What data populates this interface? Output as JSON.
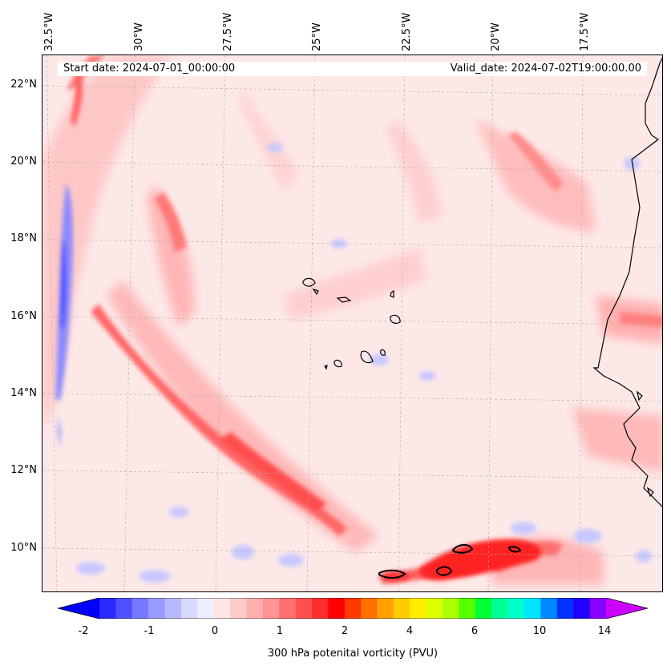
{
  "map": {
    "title_start": "Start date: 2024-07-01_00:00:00",
    "title_valid": "Valid_date: 2024-07-02T19:00:00.00",
    "lon_labels": [
      "32.5°W",
      "30°W",
      "27.5°W",
      "25°W",
      "22.5°W",
      "20°W",
      "17.5°W"
    ],
    "lat_labels": [
      "22°N",
      "20°N",
      "18°N",
      "16°N",
      "14°N",
      "12°N",
      "10°N"
    ],
    "variable": "300 hPa potenital vorticity (PVU)"
  },
  "colorbar": {
    "tick_labels": [
      "-2",
      "-1",
      "0",
      "1",
      "2",
      "4",
      "6",
      "10",
      "14"
    ],
    "colors": [
      "#0000ff",
      "#2a2aff",
      "#5050ff",
      "#7878ff",
      "#9a9aff",
      "#b8b8ff",
      "#d8d8ff",
      "#eeeeff",
      "#ffe4e4",
      "#ffcaca",
      "#ffaeae",
      "#ff9292",
      "#ff7070",
      "#ff5050",
      "#ff2d2d",
      "#ff0000",
      "#ff3a00",
      "#ff7200",
      "#ffa000",
      "#ffcc00",
      "#ffee00",
      "#ddff00",
      "#aaff00",
      "#55ff00",
      "#00ff33",
      "#00ff99",
      "#00ffcc",
      "#00e5ff",
      "#0088ff",
      "#0033ff",
      "#2200ff",
      "#8800ff",
      "#cc00ff"
    ]
  }
}
